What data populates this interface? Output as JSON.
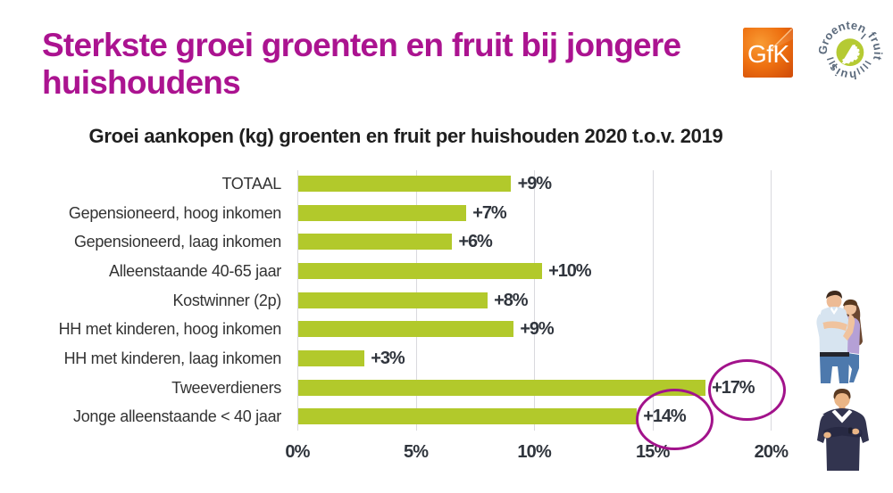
{
  "slide": {
    "title_line1": "Sterkste groei groenten en fruit bij jongere",
    "title_line2": "huishoudens",
    "title_color": "#ab1390"
  },
  "chart_data": {
    "type": "bar",
    "orientation": "horizontal",
    "title": "Groei aankopen (kg) groenten en fruit per huishouden 2020 t.o.v. 2019",
    "categories": [
      "TOTAAL",
      "Gepensioneerd, hoog inkomen",
      "Gepensioneerd, laag inkomen",
      "Alleenstaande 40-65 jaar",
      "Kostwinner (2p)",
      "HH met kinderen, hoog inkomen",
      "HH met kinderen, laag inkomen",
      "Tweeverdieners",
      "Jonge alleenstaande < 40 jaar"
    ],
    "values": [
      9,
      7,
      6,
      10,
      8,
      9,
      3,
      17,
      14
    ],
    "value_labels": [
      "+9%",
      "+7%",
      "+6%",
      "+10%",
      "+8%",
      "+9%",
      "+3%",
      "+17%",
      "+14%"
    ],
    "bar_lengths_pct": [
      9.0,
      7.1,
      6.5,
      10.3,
      8.0,
      9.1,
      2.8,
      17.2,
      14.3
    ],
    "x_ticks": [
      "0%",
      "5%",
      "10%",
      "15%",
      "20%"
    ],
    "x_tick_values": [
      0,
      5,
      10,
      15,
      20
    ],
    "xlim": [
      0,
      20
    ],
    "bar_color": "#b2c92b",
    "gridline_color": "#d9d9de",
    "legend": "none",
    "highlights": [
      {
        "category": "Tweeverdieners",
        "label": "+17%"
      },
      {
        "category": "Jonge alleenstaande < 40 jaar",
        "label": "+14%"
      }
    ],
    "highlight_color": "#a2138b"
  },
  "logos": {
    "gfk": {
      "text": "GfK",
      "color_main": "#ee7010",
      "text_color": "#ffffff"
    },
    "gfh": {
      "word_top": "Groenten",
      "word_right": "fruit",
      "word_bottom": "huis",
      "text_color": "#5b6a7c",
      "circle_color": "#b5ca33"
    }
  },
  "images": [
    {
      "alt": "couple-hugging-photo"
    },
    {
      "alt": "young-man-arms-crossed-photo"
    }
  ]
}
